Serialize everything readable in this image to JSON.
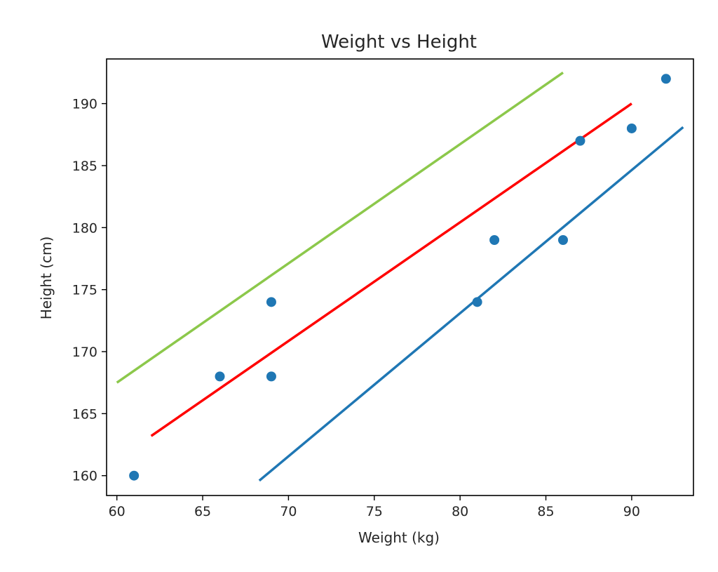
{
  "chart_data": {
    "type": "scatter",
    "title": "Weight vs Height",
    "xlabel": "Weight (kg)",
    "ylabel": "Height (cm)",
    "xlim": [
      59.4,
      93.6
    ],
    "ylim": [
      158.4,
      193.6
    ],
    "x_ticks": [
      60,
      65,
      70,
      75,
      80,
      85,
      90
    ],
    "y_ticks": [
      160,
      165,
      170,
      175,
      180,
      185,
      190
    ],
    "grid": false,
    "points": {
      "color": "#1f77b4",
      "x": [
        61,
        66,
        69,
        69,
        81,
        82,
        86,
        87,
        90,
        92
      ],
      "y": [
        160,
        168,
        168,
        174,
        174,
        179,
        179,
        187,
        188,
        192
      ]
    },
    "lines": [
      {
        "color": "#8cc84b",
        "x": [
          60,
          86
        ],
        "y": [
          167.5,
          192.5
        ]
      },
      {
        "color": "#ff0000",
        "x": [
          62,
          90
        ],
        "y": [
          163.2,
          190.0
        ]
      },
      {
        "color": "#1f77b4",
        "x": [
          68.3,
          93.0
        ],
        "y": [
          159.6,
          188.1
        ]
      }
    ]
  }
}
